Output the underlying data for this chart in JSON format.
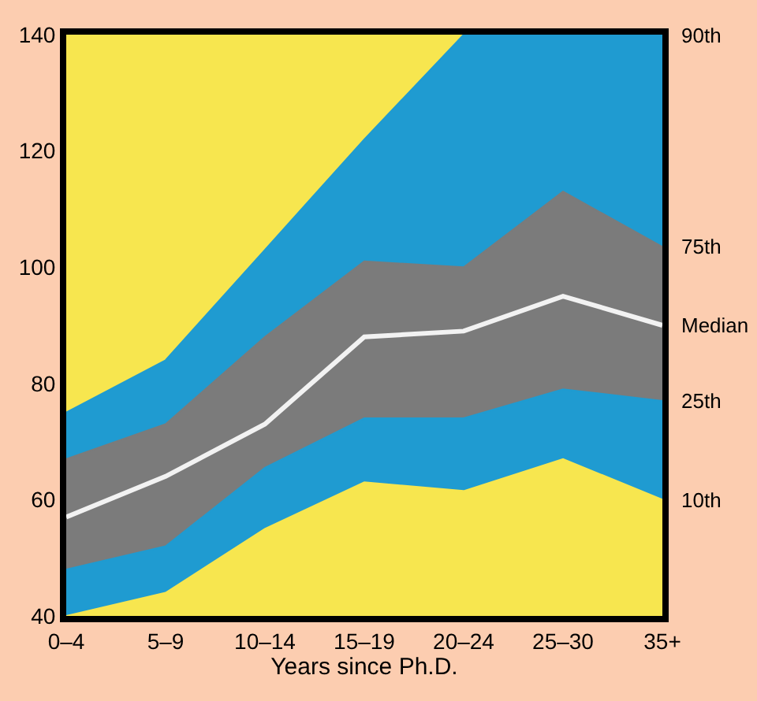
{
  "chart_data": {
    "type": "area",
    "xlabel": "Years since Ph.D.",
    "categories": [
      "0–4",
      "5–9",
      "10–14",
      "15–19",
      "20–24",
      "25–30",
      "35+"
    ],
    "ylim": [
      40,
      140
    ],
    "yticks": [
      40,
      60,
      80,
      100,
      120,
      140
    ],
    "grid": false,
    "legend": false,
    "series": [
      {
        "name": "10th",
        "color": "#f7e64f",
        "values": [
          40,
          44,
          55,
          63,
          61.5,
          67,
          60
        ]
      },
      {
        "name": "25th",
        "color": "#1f9bd1",
        "values": [
          48,
          52,
          65.5,
          74,
          74,
          79,
          77
        ]
      },
      {
        "name": "75th",
        "color": "#7b7b7b",
        "values": [
          67,
          73,
          88,
          101,
          100,
          113,
          103.5
        ]
      },
      {
        "name": "90th",
        "color": "#1f9bd1",
        "values": [
          75,
          84,
          103,
          122,
          140,
          140,
          140
        ]
      },
      {
        "name": "Median",
        "type": "line",
        "color": "#f2f2f2",
        "values": [
          57,
          64,
          73,
          88,
          89,
          95,
          90
        ]
      }
    ]
  }
}
